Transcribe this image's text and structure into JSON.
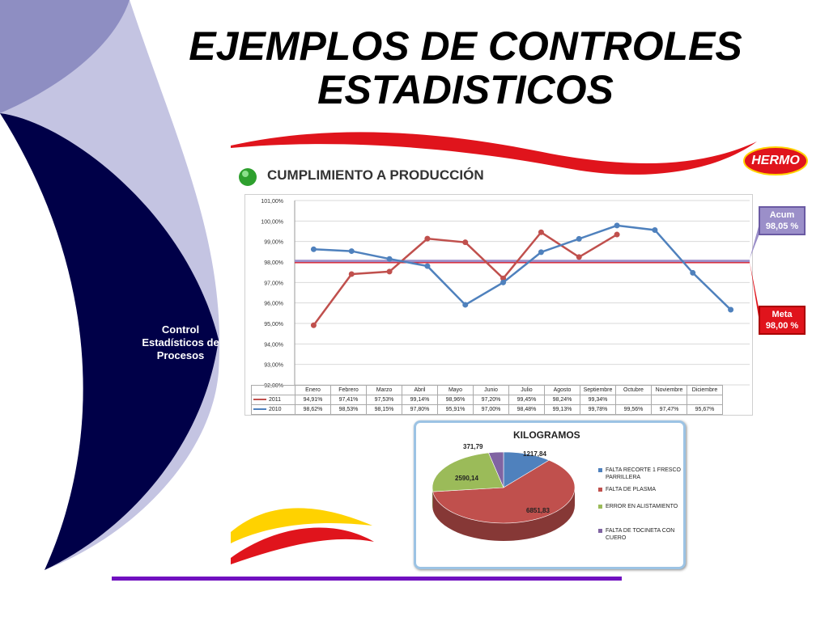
{
  "slide": {
    "title_line1": "EJEMPLOS DE CONTROLES",
    "title_line2": "ESTADISTICOS",
    "sidebar_label": "Control Estadísticos de Procesos",
    "section_title": "CUMPLIMIENTO A PRODUCCIÓN",
    "logo_text": "HERMO",
    "callouts": {
      "acum_label": "Acum",
      "acum_value": "98,05 %",
      "meta_label": "Meta",
      "meta_value": "98,00 %"
    },
    "colors": {
      "navy": "#000048",
      "lavender": "#b0b0d8",
      "series_2011": "#c0504d",
      "series_2010": "#4f81bd",
      "meta_line": "#e0141c",
      "acum_line": "#9b8fc9",
      "accent_purple": "#7010c0"
    }
  },
  "chart_data": [
    {
      "type": "line",
      "categories": [
        "Enero",
        "Febrero",
        "Marzo",
        "Abril",
        "Mayo",
        "Junio",
        "Julio",
        "Agosto",
        "Septiembre",
        "Octubre",
        "Noviembre",
        "Diciembre"
      ],
      "series": [
        {
          "name": "2011",
          "values": [
            94.91,
            97.41,
            97.53,
            99.14,
            98.96,
            97.2,
            99.45,
            98.24,
            99.34,
            null,
            null,
            null
          ],
          "labels": [
            "94,91%",
            "97,41%",
            "97,53%",
            "99,14%",
            "98,96%",
            "97,20%",
            "99,45%",
            "98,24%",
            "99,34%",
            "",
            "",
            ""
          ]
        },
        {
          "name": "2010",
          "values": [
            98.62,
            98.53,
            98.15,
            97.8,
            95.91,
            97.0,
            98.48,
            99.13,
            99.78,
            99.56,
            97.47,
            95.67
          ],
          "labels": [
            "98,62%",
            "98,53%",
            "98,15%",
            "97,80%",
            "95,91%",
            "97,00%",
            "98,48%",
            "99,13%",
            "99,78%",
            "99,56%",
            "97,47%",
            "95,67%"
          ]
        }
      ],
      "reference_lines": [
        {
          "name": "Meta",
          "value": 98.0
        },
        {
          "name": "Acum",
          "value": 98.05
        }
      ],
      "ylim": [
        92,
        101
      ],
      "yticks": [
        "101,00%",
        "100,00%",
        "99,00%",
        "98,00%",
        "97,00%",
        "96,00%",
        "95,00%",
        "94,00%",
        "93,00%",
        "92,00%"
      ],
      "grid": true,
      "legend_placement": "data-table"
    },
    {
      "type": "pie",
      "title": "KILOGRAMOS",
      "categories": [
        "FALTA RECORTE 1 FRESCO PARRILLERA",
        "FALTA DE PLASMA",
        "ERROR EN ALISTAMIENTO",
        "FALTA DE TOCINETA CON CUERO"
      ],
      "values": [
        1217.84,
        6851.83,
        2590.14,
        371.79
      ],
      "labels": [
        "1217,84",
        "6851,83",
        "2590,14",
        "371,79"
      ],
      "colors": [
        "#4f81bd",
        "#c0504d",
        "#9bbb59",
        "#8064a2"
      ],
      "legend_placement": "right"
    }
  ]
}
